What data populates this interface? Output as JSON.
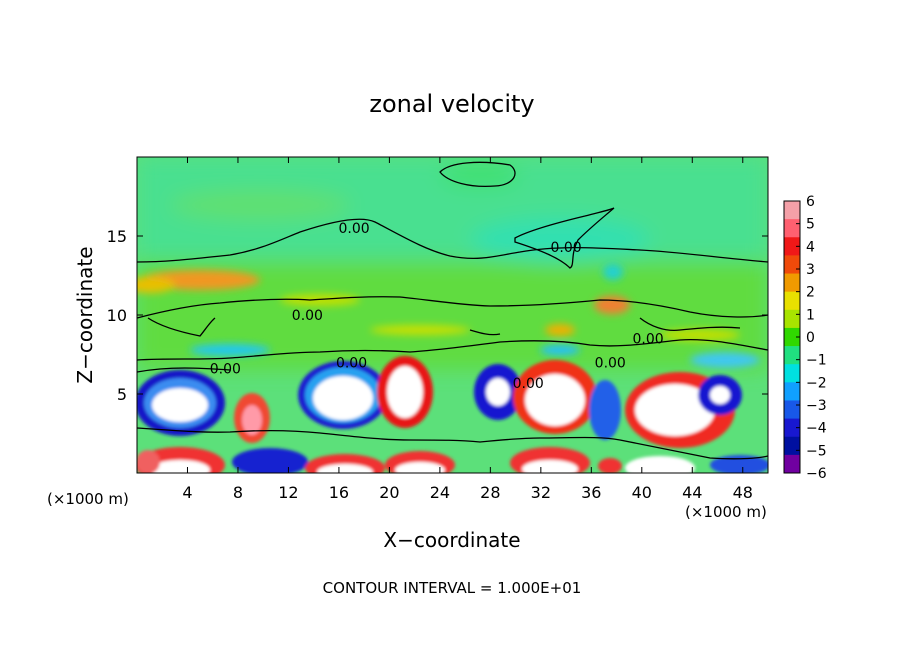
{
  "chart_data": {
    "type": "heatmap",
    "title": "zonal velocity",
    "xlabel": "X−coordinate",
    "ylabel": "Z−coordinate",
    "x_unit_left": "(×1000 m)",
    "x_unit_right": "(×1000 m)",
    "xlim": [
      0,
      50
    ],
    "ylim": [
      0,
      20
    ],
    "x_ticks": [
      4,
      8,
      12,
      16,
      20,
      24,
      28,
      32,
      36,
      40,
      44,
      48
    ],
    "y_ticks": [
      5,
      10,
      15
    ],
    "footer": "CONTOUR INTERVAL = 1.000E+01",
    "colorbar": {
      "ticks": [
        "6",
        "5",
        "4",
        "3",
        "2",
        "1",
        "0",
        "−1",
        "−2",
        "−3",
        "−4",
        "−5",
        "−6"
      ],
      "range": [
        -6,
        6
      ],
      "colors": [
        "#f4a0a8",
        "#ff6070",
        "#f01818",
        "#f04a0a",
        "#f09a00",
        "#e8e000",
        "#a8e400",
        "#30d800",
        "#20e080",
        "#00e0e0",
        "#10a0ff",
        "#1858e8",
        "#1818d0",
        "#0010a0",
        "#7000a0"
      ]
    },
    "contour_labels": [
      {
        "text": "0.00",
        "x": 13.5,
        "z": 10.0
      },
      {
        "text": "0.00",
        "x": 17.0,
        "z": 7.0
      },
      {
        "text": "0.00",
        "x": 7.0,
        "z": 6.6
      },
      {
        "text": "0.00",
        "x": 17.2,
        "z": 15.5
      },
      {
        "text": "0.00",
        "x": 34.0,
        "z": 14.3
      },
      {
        "text": "0.00",
        "x": 40.5,
        "z": 8.5
      },
      {
        "text": "0.00",
        "x": 37.5,
        "z": 7.0
      },
      {
        "text": "0.00",
        "x": 31.0,
        "z": 5.7
      }
    ]
  }
}
